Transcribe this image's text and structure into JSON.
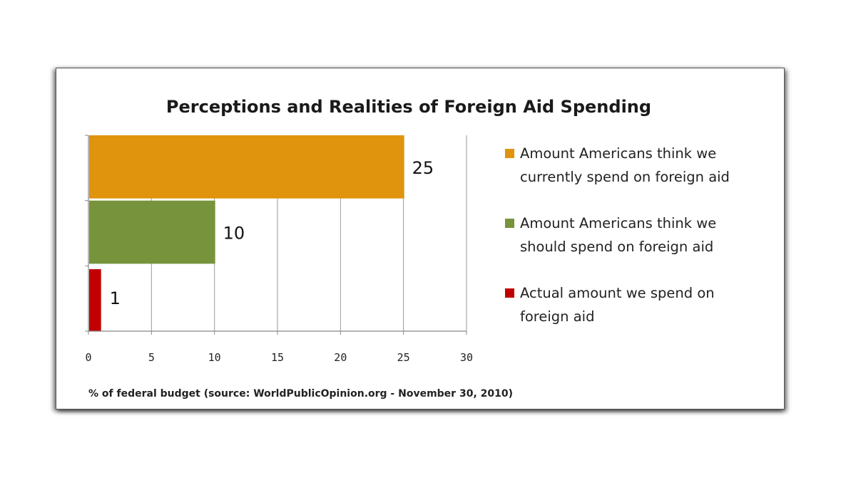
{
  "chart_data": {
    "type": "bar",
    "orientation": "horizontal",
    "title": "Perceptions and Realities of Foreign Aid Spending",
    "xlabel": "% of federal budget  (source: WorldPublicOpinion.org  - November 30, 2010)",
    "ylabel": "",
    "xlim": [
      0,
      30
    ],
    "xticks": [
      "0",
      "5",
      "10",
      "15",
      "20",
      "25",
      "30"
    ],
    "grid": true,
    "legend_position": "right",
    "series": [
      {
        "name": "Amount Americans think we currently spend on foreign aid",
        "legend_lines": [
          "Amount Americans think we",
          "currently spend on foreign aid"
        ],
        "value": 25,
        "label": "25",
        "color": "#E0930C"
      },
      {
        "name": "Amount Americans think we should spend on foreign aid",
        "legend_lines": [
          "Amount Americans think we",
          "should spend on foreign aid"
        ],
        "value": 10,
        "label": "10",
        "color": "#77933C"
      },
      {
        "name": "Actual amount we spend on foreign aid",
        "legend_lines": [
          "Actual amount we spend on",
          "foreign aid"
        ],
        "value": 1,
        "label": "1",
        "color": "#C00000"
      }
    ]
  }
}
